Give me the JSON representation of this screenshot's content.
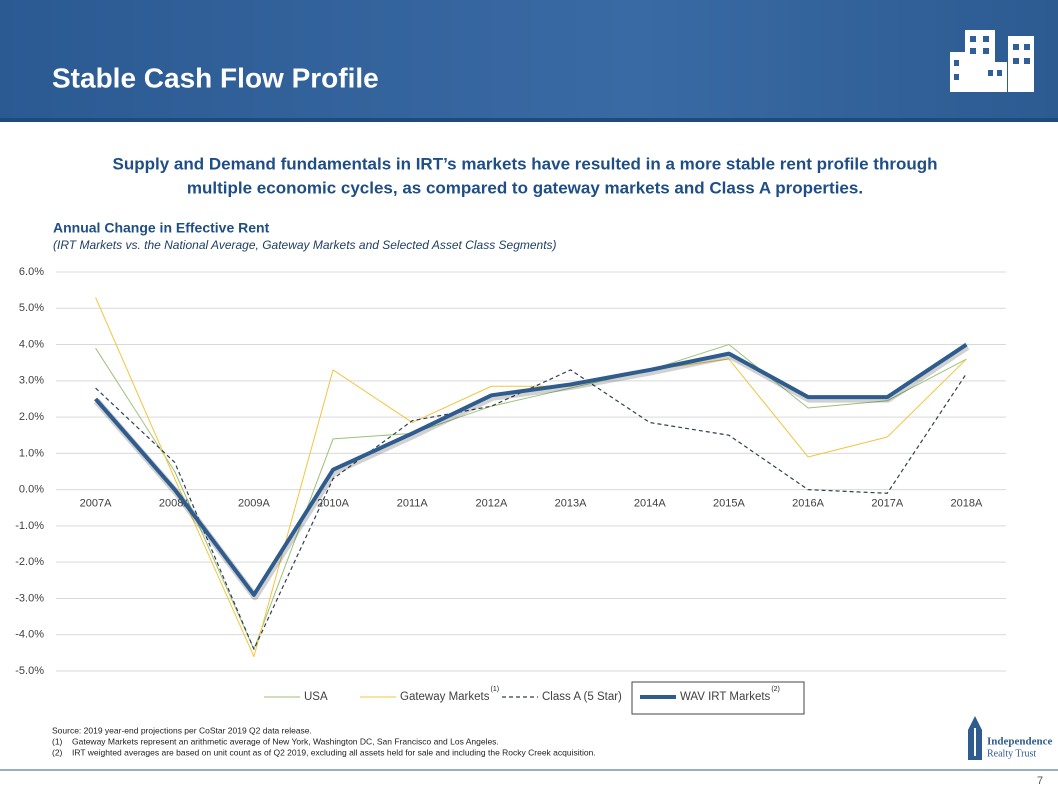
{
  "header": {
    "title": "Stable Cash Flow Profile"
  },
  "subtitle_lines": [
    "Supply and Demand fundamentals in IRT’s markets have resulted in a more stable rent profile through",
    "multiple economic cycles, as compared to gateway markets and Class A properties."
  ],
  "chart_data": {
    "type": "line",
    "title": "Annual Change in Effective Rent",
    "subtitle": "(IRT Markets vs. the National Average, Gateway Markets and Selected Asset Class Segments)",
    "categories": [
      "2007A",
      "2008A",
      "2009A",
      "2010A",
      "2011A",
      "2012A",
      "2013A",
      "2014A",
      "2015A",
      "2016A",
      "2017A",
      "2018A"
    ],
    "series": [
      {
        "name": "USA",
        "color": "#9bc17a",
        "style": "thin",
        "values": [
          3.9,
          0.5,
          -4.4,
          1.4,
          1.55,
          2.3,
          2.8,
          3.3,
          4.0,
          2.25,
          2.45,
          3.6
        ]
      },
      {
        "name": "Gateway Markets",
        "legend_note": "(1)",
        "color": "#f2c53d",
        "style": "thin",
        "values": [
          5.3,
          0.3,
          -4.6,
          3.3,
          1.85,
          2.85,
          2.85,
          3.3,
          3.6,
          0.9,
          1.45,
          3.6
        ]
      },
      {
        "name": "Class A (5 Star)",
        "color": "#333f50",
        "style": "dashed",
        "values": [
          2.8,
          0.75,
          -4.4,
          0.3,
          1.9,
          2.3,
          3.3,
          1.85,
          1.5,
          0.0,
          -0.1,
          3.2
        ]
      },
      {
        "name": "WAV IRT Markets",
        "legend_note": "(2)",
        "color": "#2e5c8e",
        "style": "bold",
        "values": [
          2.5,
          0.0,
          -2.9,
          0.55,
          1.55,
          2.6,
          2.9,
          3.3,
          3.75,
          2.55,
          2.55,
          4.0
        ]
      }
    ],
    "ylim": [
      -5,
      6
    ],
    "yticks": [
      {
        "value": -5,
        "label": "-5.0%"
      },
      {
        "value": -4,
        "label": "-4.0%"
      },
      {
        "value": -3,
        "label": "-3.0%"
      },
      {
        "value": -2,
        "label": "-2.0%"
      },
      {
        "value": -1,
        "label": "-1.0%"
      },
      {
        "value": 0,
        "label": "0.0%"
      },
      {
        "value": 1,
        "label": "1.0%"
      },
      {
        "value": 2,
        "label": "2.0%"
      },
      {
        "value": 3,
        "label": "3.0%"
      },
      {
        "value": 4,
        "label": "4.0%"
      },
      {
        "value": 5,
        "label": "5.0%"
      },
      {
        "value": 6,
        "label": "6.0%"
      }
    ],
    "grid": true
  },
  "footnotes": {
    "source": "Source: 2019 year-end projections per CoStar 2019 Q2 data release.",
    "notes": [
      {
        "marker": "(1)",
        "text": "Gateway Markets represent an arithmetic average of New York, Washington DC, San Francisco and Los Angeles."
      },
      {
        "marker": "(2)",
        "text": "IRT weighted averages are based on unit count as of Q2 2019, excluding all assets held for sale and including the Rocky Creek acquisition."
      }
    ]
  },
  "logo": {
    "line1": "Independence",
    "line2": "Realty Trust"
  },
  "page_number": "7"
}
